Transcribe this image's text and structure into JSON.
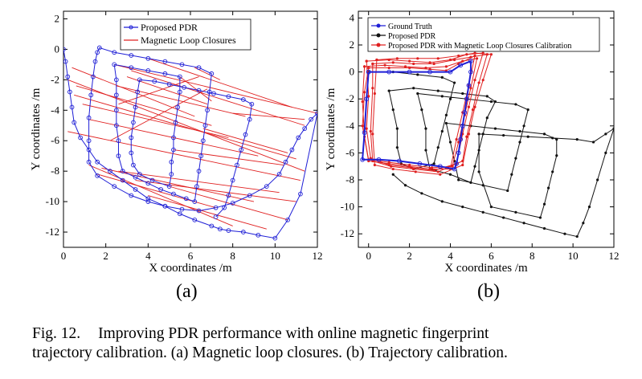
{
  "caption": {
    "fig_label": "Fig. 12.",
    "line1": "Improving PDR performance with online magnetic fingerprint",
    "line2": "trajectory calibration. (a) Magnetic loop closures. (b) Trajectory calibration."
  },
  "panels": [
    {
      "label": "(a)"
    },
    {
      "label": "(b)"
    }
  ],
  "chart_data": [
    {
      "type": "line",
      "panel": "(a)",
      "xlabel": "X coordinates /m",
      "ylabel": "Y coordinates /m",
      "xlim": [
        0,
        12
      ],
      "ylim": [
        -13,
        2.5
      ],
      "xticks": [
        0,
        2,
        4,
        6,
        8,
        10,
        12
      ],
      "yticks": [
        2,
        0,
        -2,
        -4,
        -6,
        -8,
        -10,
        -12
      ],
      "legend_position": "top-center",
      "colors": {
        "pdr": "#1f1fd6",
        "closure": "#e02020"
      },
      "series": [
        {
          "name": "Proposed PDR",
          "marker": "circle",
          "x": [
            0,
            0.1,
            0.2,
            0.3,
            0.4,
            0.5,
            0.8,
            1.2,
            1.6,
            2.2,
            2.8,
            3.4,
            4.0,
            4.8,
            5.5,
            6.2,
            7.0,
            7.4,
            7.8,
            8.5,
            9.2,
            10.0,
            10.6,
            11.2,
            12.0,
            11.7,
            11.4,
            11.1,
            10.8,
            10.5,
            10.2,
            9.6,
            8.8,
            8.0,
            7.2,
            6.4,
            5.6,
            4.8,
            4.0,
            3.2,
            2.4,
            1.6,
            1.2,
            1.2,
            1.2,
            1.3,
            1.4,
            1.5,
            1.6,
            1.7,
            2.4,
            3.2,
            4.0,
            4.8,
            5.6,
            6.4,
            7.0,
            6.9,
            6.8,
            6.7,
            6.6,
            6.5,
            6.4,
            6.3,
            6.2,
            5.8,
            5.2,
            4.6,
            4.0,
            3.4,
            2.8,
            2.6,
            2.6,
            2.5,
            2.5,
            2.5,
            2.5,
            2.4,
            3.2,
            4.0,
            4.8,
            5.5,
            5.5,
            5.4,
            5.3,
            5.2,
            5.2,
            5.1,
            5.1,
            5.0,
            4.2,
            3.6,
            3.3,
            3.2,
            3.2,
            3.3,
            3.4,
            3.5,
            3.6,
            4.3,
            5.0,
            5.7,
            6.4,
            7.1,
            7.8,
            8.5,
            8.9,
            8.8,
            8.6,
            8.4,
            8.2,
            8.0,
            7.8,
            7.6,
            7.2
          ],
          "y": [
            0,
            -0.8,
            -1.8,
            -2.8,
            -3.8,
            -4.8,
            -5.8,
            -6.6,
            -7.4,
            -8.0,
            -8.6,
            -9.2,
            -9.8,
            -10.3,
            -10.8,
            -11.2,
            -11.6,
            -11.8,
            -11.9,
            -12.0,
            -12.2,
            -12.4,
            -11.2,
            -9.5,
            -4.2,
            -4.6,
            -5.2,
            -5.8,
            -6.6,
            -7.4,
            -8.2,
            -9.0,
            -9.6,
            -10.1,
            -10.4,
            -10.6,
            -10.5,
            -10.3,
            -10.0,
            -9.6,
            -9.0,
            -8.3,
            -7.4,
            -6.0,
            -4.5,
            -3.0,
            -1.8,
            -0.8,
            -0.2,
            0.1,
            -0.2,
            -0.4,
            -0.6,
            -0.8,
            -1.0,
            -1.2,
            -1.6,
            -2.8,
            -4.0,
            -5.0,
            -6.0,
            -7.0,
            -8.0,
            -9.0,
            -10.0,
            -9.8,
            -9.5,
            -9.2,
            -8.8,
            -8.4,
            -8.0,
            -7.0,
            -6.0,
            -5.0,
            -4.0,
            -3.0,
            -2.0,
            -1.0,
            -1.2,
            -1.4,
            -1.6,
            -1.8,
            -2.8,
            -3.8,
            -4.8,
            -5.8,
            -6.6,
            -7.4,
            -8.2,
            -9.0,
            -8.6,
            -8.2,
            -7.6,
            -6.8,
            -5.8,
            -4.8,
            -3.8,
            -2.8,
            -2.0,
            -2.1,
            -2.3,
            -2.5,
            -2.7,
            -2.9,
            -3.1,
            -3.3,
            -3.6,
            -4.6,
            -5.6,
            -6.6,
            -7.6,
            -8.6,
            -9.6,
            -10.4,
            -11.0
          ]
        },
        {
          "name": "Magnetic Loop Closures",
          "type": "segments",
          "segments": [
            [
              0.4,
              -1.2,
              6.2,
              -4.4
            ],
            [
              0.6,
              -2.4,
              7.0,
              -5.0
            ],
            [
              0.9,
              -3.6,
              7.8,
              -5.8
            ],
            [
              1.2,
              -4.6,
              9.2,
              -7.0
            ],
            [
              0.2,
              -5.4,
              11.2,
              -8.6
            ],
            [
              0.2,
              -2.0,
              11.4,
              -8.0
            ],
            [
              0.5,
              -3.0,
              11.0,
              -7.2
            ],
            [
              2.4,
              -1.0,
              12.0,
              -4.2
            ],
            [
              3.2,
              -1.4,
              11.4,
              -5.0
            ],
            [
              2.5,
              -2.4,
              8.6,
              -4.4
            ],
            [
              3.0,
              -1.8,
              6.8,
              -3.6
            ],
            [
              4.0,
              -0.6,
              10.8,
              -3.8
            ],
            [
              5.5,
              -1.8,
              7.0,
              -3.4
            ],
            [
              2.6,
              -3.6,
              6.4,
              -1.8
            ],
            [
              1.6,
              -8.2,
              7.2,
              -10.4
            ],
            [
              1.8,
              -7.8,
              9.0,
              -10.0
            ],
            [
              2.6,
              -8.0,
              10.2,
              -9.4
            ],
            [
              3.4,
              -8.6,
              11.0,
              -10.0
            ],
            [
              1.2,
              -7.6,
              8.0,
              -11.6
            ],
            [
              4.0,
              -9.6,
              9.6,
              -11.8
            ],
            [
              5.0,
              -9.0,
              10.6,
              -11.2
            ],
            [
              6.2,
              -1.2,
              7.4,
              -2.0
            ],
            [
              6.6,
              -5.2,
              10.6,
              -6.8
            ],
            [
              8.0,
              -4.2,
              11.4,
              -4.6
            ],
            [
              5.2,
              -6.6,
              10.4,
              -7.6
            ],
            [
              2.2,
              -6.0,
              6.8,
              -2.6
            ]
          ]
        }
      ]
    },
    {
      "type": "line",
      "panel": "(b)",
      "xlabel": "X coordinates /m",
      "ylabel": "Y coordinates /m",
      "xlim": [
        -0.5,
        12
      ],
      "ylim": [
        -13,
        4.5
      ],
      "xticks": [
        0,
        2,
        4,
        6,
        8,
        10,
        12
      ],
      "yticks": [
        4,
        2,
        0,
        -2,
        -4,
        -6,
        -8,
        -10,
        -12
      ],
      "legend_position": "top-left",
      "colors": {
        "truth": "#1f1fd6",
        "pdr": "#111111",
        "calibrated": "#e02020"
      },
      "series": [
        {
          "name": "Ground Truth",
          "marker": "circle",
          "x": [
            0,
            1,
            2,
            3,
            4,
            4.5,
            5,
            5,
            4.9,
            4.8,
            4.7,
            4.6,
            4.5,
            4.4,
            4.3,
            4.2,
            3.5,
            2.5,
            1.5,
            0.5,
            -0.3,
            -0.2,
            -0.1,
            0
          ],
          "y": [
            0,
            0,
            0,
            0,
            0,
            0.5,
            0.8,
            0,
            -1.0,
            -2.0,
            -3.0,
            -4.0,
            -5.0,
            -6.0,
            -6.8,
            -7.2,
            -7.0,
            -6.8,
            -6.6,
            -6.5,
            -6.5,
            -4.5,
            -2.0,
            0
          ]
        },
        {
          "name": "Proposed PDR",
          "marker": "dot",
          "x": [
            0,
            1.2,
            2.4,
            3.6,
            4.2,
            4.0,
            3.8,
            3.6,
            3.4,
            3.2,
            2.2,
            1.6,
            1.4,
            1.4,
            1.2,
            1.0,
            2.2,
            3.4,
            4.6,
            5.8,
            6.2,
            5.8,
            5.6,
            5.4,
            5.2,
            5.0,
            4.0,
            3.0,
            2.8,
            2.8,
            2.6,
            2.4,
            3.6,
            4.8,
            6.0,
            7.2,
            7.8,
            7.6,
            7.4,
            7.2,
            7.0,
            6.8,
            5.6,
            4.4,
            4.2,
            4.0,
            3.8,
            5.0,
            6.2,
            7.4,
            8.6,
            9.2,
            9.2,
            9.0,
            8.8,
            8.6,
            8.4,
            7.2,
            6.0,
            5.4,
            5.4,
            6.6,
            7.8,
            9.0,
            10.2,
            11.0,
            11.6,
            12.0,
            11.6,
            11.2,
            10.8,
            10.5,
            10.2,
            9.6,
            8.6,
            7.6,
            6.6,
            5.6,
            4.6,
            3.6,
            2.6,
            1.8,
            1.2
          ],
          "y": [
            0,
            0,
            -0.2,
            -0.4,
            -0.8,
            -2.0,
            -3.2,
            -4.4,
            -5.6,
            -6.8,
            -7.2,
            -6.8,
            -5.6,
            -4.2,
            -2.8,
            -1.4,
            -1.2,
            -1.4,
            -1.6,
            -1.8,
            -2.2,
            -3.4,
            -4.6,
            -5.8,
            -7.0,
            -8.2,
            -7.6,
            -7.2,
            -5.8,
            -4.2,
            -2.8,
            -1.6,
            -1.8,
            -2.0,
            -2.2,
            -2.4,
            -2.8,
            -4.0,
            -5.2,
            -6.4,
            -7.6,
            -8.8,
            -8.4,
            -8.0,
            -6.6,
            -5.2,
            -3.8,
            -4.0,
            -4.2,
            -4.4,
            -4.6,
            -5.0,
            -6.2,
            -7.4,
            -8.6,
            -9.8,
            -10.8,
            -10.4,
            -10.0,
            -7.4,
            -4.6,
            -4.7,
            -4.8,
            -4.9,
            -5.0,
            -5.2,
            -4.6,
            -4.2,
            -6.0,
            -8.0,
            -10.0,
            -11.2,
            -12.2,
            -12.0,
            -11.6,
            -11.2,
            -10.8,
            -10.4,
            -10.0,
            -9.6,
            -9.0,
            -8.4,
            -7.6
          ]
        },
        {
          "name": "Proposed PDR with Magnetic Loop Closures Calibration",
          "marker": "dot",
          "laps": [
            {
              "x": [
                0,
                1,
                2,
                3,
                3.8,
                4.4,
                5.2,
                4.9,
                4.6,
                4.3,
                4.0,
                3.0,
                2.0,
                1.0,
                0,
                -0.3,
                -0.2,
                0
              ],
              "y": [
                0.3,
                0.3,
                0.3,
                0.2,
                0.1,
                0.6,
                1.2,
                -1.0,
                -3.0,
                -5.0,
                -7.2,
                -7.2,
                -7.0,
                -6.8,
                -6.6,
                -4.0,
                -1.5,
                0.3
              ]
            },
            {
              "x": [
                -0.1,
                1,
                2,
                3,
                4,
                4.8,
                5.6,
                5.2,
                4.9,
                4.6,
                4.3,
                3.2,
                2.1,
                1.0,
                0.1,
                -0.1,
                0,
                -0.1
              ],
              "y": [
                0.8,
                0.9,
                0.8,
                0.7,
                0.9,
                1.3,
                1.4,
                -0.6,
                -2.6,
                -4.6,
                -6.8,
                -7.3,
                -7.1,
                -6.9,
                -6.4,
                -4.2,
                -1.8,
                0.8
              ]
            },
            {
              "x": [
                0.2,
                1.2,
                2.2,
                3.2,
                4.2,
                5.0,
                5.8,
                5.4,
                5.1,
                4.8,
                4.6,
                3.4,
                2.2,
                1.1,
                0.2,
                0.1,
                0.2,
                0.2
              ],
              "y": [
                0.6,
                0.7,
                0.6,
                0.6,
                0.9,
                1.1,
                1.3,
                -0.8,
                -2.8,
                -4.8,
                -6.6,
                -7.4,
                -7.2,
                -7.0,
                -6.6,
                -4.4,
                -1.2,
                0.6
              ]
            },
            {
              "x": [
                -0.2,
                0.8,
                1.8,
                2.8,
                3.8,
                4.6,
                5.3,
                5.0,
                4.7,
                4.4,
                4.1,
                3.1,
                2.0,
                1.0,
                0.0,
                -0.2,
                -0.3,
                -0.2
              ],
              "y": [
                0.4,
                0.5,
                0.4,
                0.3,
                0.4,
                0.8,
                1.0,
                -1.2,
                -3.2,
                -5.2,
                -7.0,
                -7.1,
                -6.9,
                -6.7,
                -6.5,
                -4.8,
                -2.2,
                0.4
              ]
            },
            {
              "x": [
                0.4,
                1.4,
                2.4,
                3.4,
                4.4,
                5.2,
                6.0,
                5.6,
                5.2,
                4.9,
                4.6,
                3.5,
                2.3,
                1.2,
                0.3,
                0.2,
                0.3,
                0.4
              ],
              "y": [
                0.9,
                1.0,
                1.0,
                1.0,
                1.2,
                1.4,
                1.3,
                -0.6,
                -2.6,
                -4.6,
                -6.9,
                -7.6,
                -7.4,
                -7.2,
                -6.9,
                -4.6,
                -1.6,
                0.9
              ]
            }
          ]
        }
      ]
    }
  ]
}
